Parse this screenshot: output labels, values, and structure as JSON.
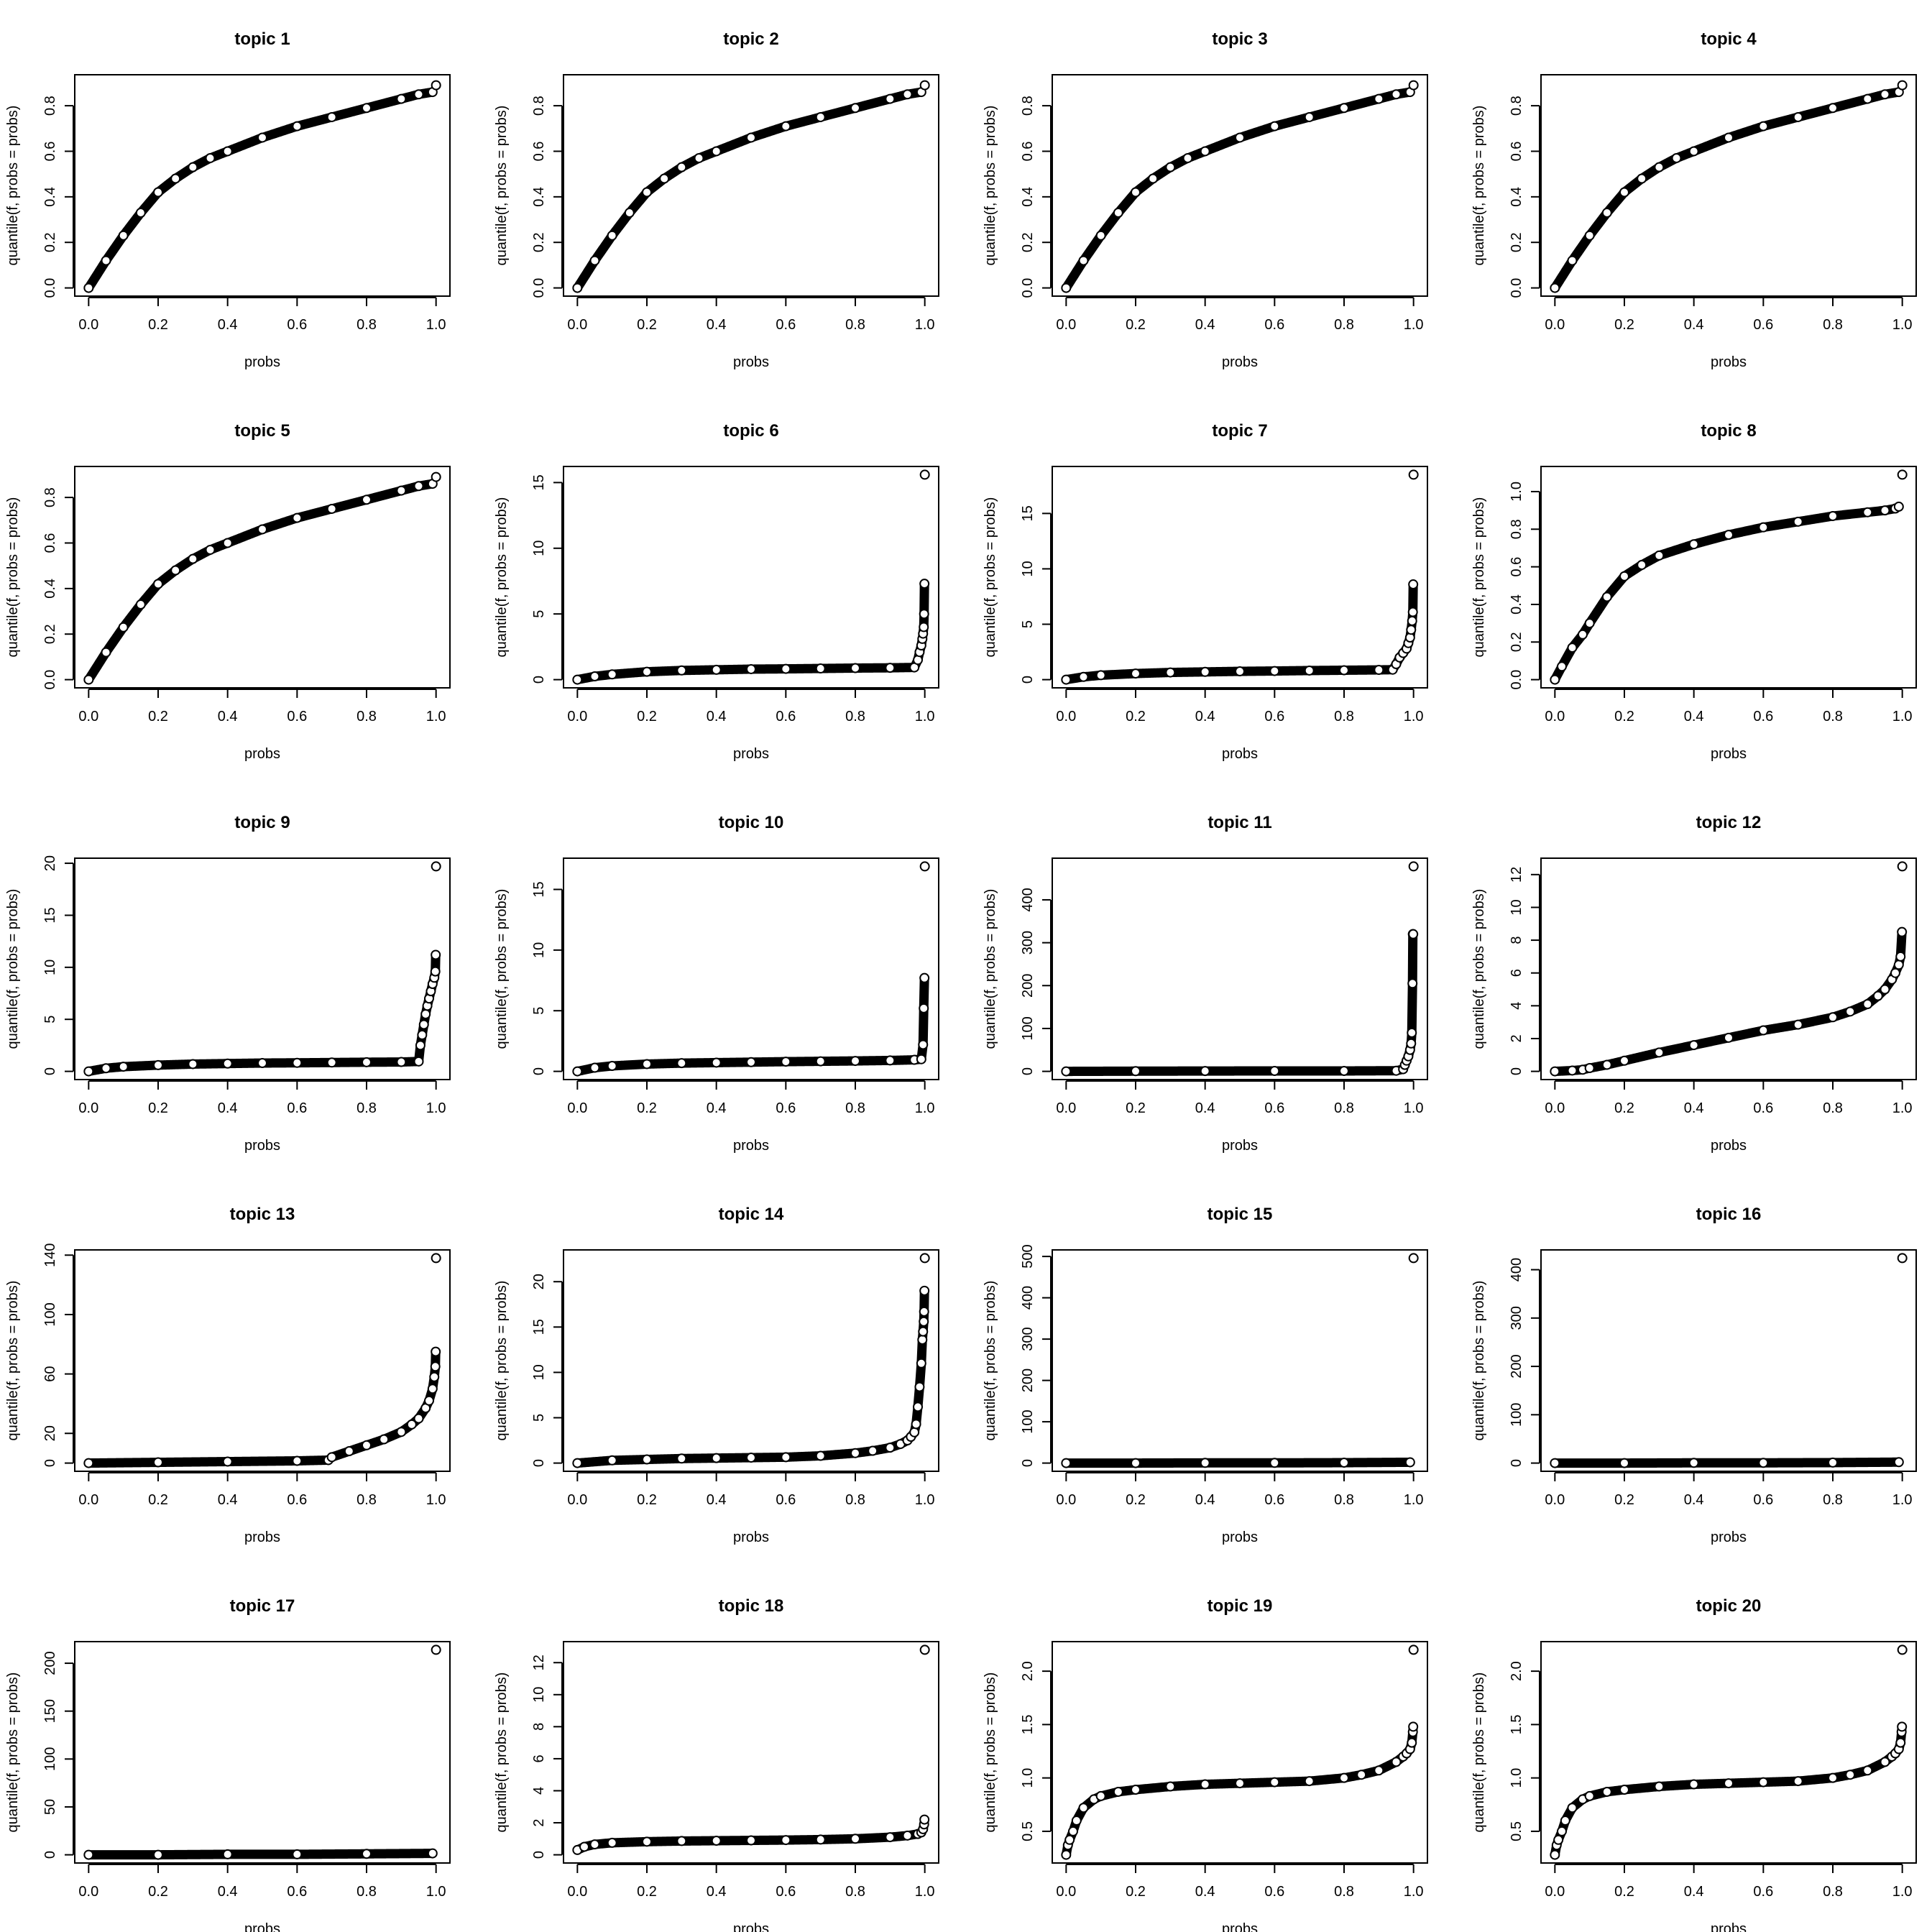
{
  "chart_data": [
    {
      "type": "scatter",
      "title": "topic 1",
      "xlabel": "probs",
      "ylabel": "quantile(f, probs = probs)",
      "xlim": [
        0,
        1
      ],
      "ylim": [
        0,
        0.9
      ],
      "xticks": [
        "0.0",
        "0.2",
        "0.4",
        "0.6",
        "0.8",
        "1.0"
      ],
      "yticks": [
        "0.0",
        "0.2",
        "0.4",
        "0.6",
        "0.8"
      ],
      "x": [
        0,
        0.05,
        0.1,
        0.15,
        0.2,
        0.25,
        0.3,
        0.35,
        0.4,
        0.5,
        0.6,
        0.7,
        0.8,
        0.9,
        0.95,
        0.99,
        1.0
      ],
      "y": [
        0,
        0.12,
        0.23,
        0.33,
        0.42,
        0.48,
        0.53,
        0.57,
        0.6,
        0.66,
        0.71,
        0.75,
        0.79,
        0.83,
        0.85,
        0.86,
        0.89
      ]
    },
    {
      "type": "scatter",
      "title": "topic 2",
      "xlabel": "probs",
      "ylabel": "quantile(f, probs = probs)",
      "xlim": [
        0,
        1
      ],
      "ylim": [
        0,
        0.9
      ],
      "xticks": [
        "0.0",
        "0.2",
        "0.4",
        "0.6",
        "0.8",
        "1.0"
      ],
      "yticks": [
        "0.0",
        "0.2",
        "0.4",
        "0.6",
        "0.8"
      ],
      "x": [
        0,
        0.05,
        0.1,
        0.15,
        0.2,
        0.25,
        0.3,
        0.35,
        0.4,
        0.5,
        0.6,
        0.7,
        0.8,
        0.9,
        0.95,
        0.99,
        1.0
      ],
      "y": [
        0,
        0.12,
        0.23,
        0.33,
        0.42,
        0.48,
        0.53,
        0.57,
        0.6,
        0.66,
        0.71,
        0.75,
        0.79,
        0.83,
        0.85,
        0.86,
        0.89
      ]
    },
    {
      "type": "scatter",
      "title": "topic 3",
      "xlabel": "probs",
      "ylabel": "quantile(f, probs = probs)",
      "xlim": [
        0,
        1
      ],
      "ylim": [
        0,
        0.9
      ],
      "xticks": [
        "0.0",
        "0.2",
        "0.4",
        "0.6",
        "0.8",
        "1.0"
      ],
      "yticks": [
        "0.0",
        "0.2",
        "0.4",
        "0.6",
        "0.8"
      ],
      "x": [
        0,
        0.05,
        0.1,
        0.15,
        0.2,
        0.25,
        0.3,
        0.35,
        0.4,
        0.5,
        0.6,
        0.7,
        0.8,
        0.9,
        0.95,
        0.99,
        1.0
      ],
      "y": [
        0,
        0.12,
        0.23,
        0.33,
        0.42,
        0.48,
        0.53,
        0.57,
        0.6,
        0.66,
        0.71,
        0.75,
        0.79,
        0.83,
        0.85,
        0.86,
        0.89
      ]
    },
    {
      "type": "scatter",
      "title": "topic 4",
      "xlabel": "probs",
      "ylabel": "quantile(f, probs = probs)",
      "xlim": [
        0,
        1
      ],
      "ylim": [
        0,
        0.9
      ],
      "xticks": [
        "0.0",
        "0.2",
        "0.4",
        "0.6",
        "0.8",
        "1.0"
      ],
      "yticks": [
        "0.0",
        "0.2",
        "0.4",
        "0.6",
        "0.8"
      ],
      "x": [
        0,
        0.05,
        0.1,
        0.15,
        0.2,
        0.25,
        0.3,
        0.35,
        0.4,
        0.5,
        0.6,
        0.7,
        0.8,
        0.9,
        0.95,
        0.99,
        1.0
      ],
      "y": [
        0,
        0.12,
        0.23,
        0.33,
        0.42,
        0.48,
        0.53,
        0.57,
        0.6,
        0.66,
        0.71,
        0.75,
        0.79,
        0.83,
        0.85,
        0.86,
        0.89
      ]
    },
    {
      "type": "scatter",
      "title": "topic 5",
      "xlabel": "probs",
      "ylabel": "quantile(f, probs = probs)",
      "xlim": [
        0,
        1
      ],
      "ylim": [
        0,
        0.9
      ],
      "xticks": [
        "0.0",
        "0.2",
        "0.4",
        "0.6",
        "0.8",
        "1.0"
      ],
      "yticks": [
        "0.0",
        "0.2",
        "0.4",
        "0.6",
        "0.8"
      ],
      "x": [
        0,
        0.05,
        0.1,
        0.15,
        0.2,
        0.25,
        0.3,
        0.35,
        0.4,
        0.5,
        0.6,
        0.7,
        0.8,
        0.9,
        0.95,
        0.99,
        1.0
      ],
      "y": [
        0,
        0.12,
        0.23,
        0.33,
        0.42,
        0.48,
        0.53,
        0.57,
        0.6,
        0.66,
        0.71,
        0.75,
        0.79,
        0.83,
        0.85,
        0.86,
        0.89
      ]
    },
    {
      "type": "scatter",
      "title": "topic 6",
      "xlabel": "probs",
      "ylabel": "quantile(f, probs = probs)",
      "xlim": [
        0,
        1
      ],
      "ylim": [
        0,
        15.6
      ],
      "xticks": [
        "0.0",
        "0.2",
        "0.4",
        "0.6",
        "0.8",
        "1.0"
      ],
      "yticks": [
        "0",
        "5",
        "10",
        "15"
      ],
      "x": [
        0,
        0.05,
        0.1,
        0.2,
        0.3,
        0.4,
        0.5,
        0.6,
        0.7,
        0.8,
        0.9,
        0.97,
        0.98,
        0.985,
        0.99,
        0.993,
        0.995,
        0.997,
        0.998,
        0.999,
        1.0
      ],
      "y": [
        0,
        0.25,
        0.4,
        0.6,
        0.7,
        0.75,
        0.8,
        0.82,
        0.85,
        0.88,
        0.9,
        0.93,
        1.5,
        2.1,
        2.6,
        3.1,
        3.5,
        4.0,
        5.0,
        7.3,
        15.6
      ]
    },
    {
      "type": "scatter",
      "title": "topic 7",
      "xlabel": "probs",
      "ylabel": "quantile(f, probs = probs)",
      "xlim": [
        0,
        1
      ],
      "ylim": [
        0,
        18.5
      ],
      "xticks": [
        "0.0",
        "0.2",
        "0.4",
        "0.6",
        "0.8",
        "1.0"
      ],
      "yticks": [
        "0",
        "5",
        "10",
        "15"
      ],
      "x": [
        0,
        0.05,
        0.1,
        0.2,
        0.3,
        0.4,
        0.5,
        0.6,
        0.7,
        0.8,
        0.9,
        0.94,
        0.95,
        0.96,
        0.97,
        0.98,
        0.985,
        0.99,
        0.993,
        0.996,
        0.998,
        0.999,
        1.0
      ],
      "y": [
        0,
        0.25,
        0.4,
        0.55,
        0.65,
        0.7,
        0.75,
        0.78,
        0.82,
        0.85,
        0.88,
        0.9,
        1.4,
        2.0,
        2.4,
        2.8,
        3.3,
        3.8,
        4.5,
        5.3,
        6.1,
        8.6,
        18.5
      ]
    },
    {
      "type": "scatter",
      "title": "topic 8",
      "xlabel": "probs",
      "ylabel": "quantile(f, probs = probs)",
      "xlim": [
        0,
        1
      ],
      "ylim": [
        0,
        1.09
      ],
      "xticks": [
        "0.0",
        "0.2",
        "0.4",
        "0.6",
        "0.8",
        "1.0"
      ],
      "yticks": [
        "0.0",
        "0.2",
        "0.4",
        "0.6",
        "0.8",
        "1.0"
      ],
      "x": [
        0,
        0.02,
        0.05,
        0.08,
        0.1,
        0.15,
        0.2,
        0.25,
        0.3,
        0.4,
        0.5,
        0.6,
        0.7,
        0.8,
        0.9,
        0.95,
        0.98,
        0.99,
        1.0
      ],
      "y": [
        0,
        0.07,
        0.17,
        0.24,
        0.3,
        0.44,
        0.55,
        0.61,
        0.66,
        0.72,
        0.77,
        0.81,
        0.84,
        0.87,
        0.89,
        0.9,
        0.91,
        0.92,
        1.09
      ]
    },
    {
      "type": "scatter",
      "title": "topic 9",
      "xlabel": "probs",
      "ylabel": "quantile(f, probs = probs)",
      "xlim": [
        0,
        1
      ],
      "ylim": [
        0,
        19.7
      ],
      "xticks": [
        "0.0",
        "0.2",
        "0.4",
        "0.6",
        "0.8",
        "1.0"
      ],
      "yticks": [
        "0",
        "5",
        "10",
        "15",
        "20"
      ],
      "x": [
        0,
        0.05,
        0.1,
        0.2,
        0.3,
        0.4,
        0.5,
        0.6,
        0.7,
        0.8,
        0.9,
        0.95,
        0.955,
        0.96,
        0.965,
        0.97,
        0.975,
        0.98,
        0.985,
        0.99,
        0.995,
        0.998,
        0.999,
        1.0
      ],
      "y": [
        0,
        0.3,
        0.45,
        0.6,
        0.7,
        0.75,
        0.8,
        0.82,
        0.85,
        0.88,
        0.9,
        0.95,
        2.5,
        3.5,
        4.5,
        5.5,
        6.3,
        7.0,
        7.7,
        8.4,
        9.0,
        9.6,
        11.2,
        19.7
      ]
    },
    {
      "type": "scatter",
      "title": "topic 10",
      "xlabel": "probs",
      "ylabel": "quantile(f, probs = probs)",
      "xlim": [
        0,
        1
      ],
      "ylim": [
        0,
        16.9
      ],
      "xticks": [
        "0.0",
        "0.2",
        "0.4",
        "0.6",
        "0.8",
        "1.0"
      ],
      "yticks": [
        "0",
        "5",
        "10",
        "15"
      ],
      "x": [
        0,
        0.05,
        0.1,
        0.2,
        0.3,
        0.4,
        0.5,
        0.6,
        0.7,
        0.8,
        0.9,
        0.97,
        0.99,
        0.995,
        0.997,
        0.999,
        1.0
      ],
      "y": [
        0,
        0.3,
        0.45,
        0.6,
        0.68,
        0.72,
        0.76,
        0.8,
        0.83,
        0.86,
        0.9,
        0.95,
        1.0,
        2.2,
        5.2,
        7.7,
        16.9
      ]
    },
    {
      "type": "scatter",
      "title": "topic 11",
      "xlabel": "probs",
      "ylabel": "quantile(f, probs = probs)",
      "xlim": [
        0,
        1
      ],
      "ylim": [
        0,
        478
      ],
      "xticks": [
        "0.0",
        "0.2",
        "0.4",
        "0.6",
        "0.8",
        "1.0"
      ],
      "yticks": [
        "0",
        "100",
        "200",
        "300",
        "400"
      ],
      "x": [
        0,
        0.2,
        0.4,
        0.6,
        0.8,
        0.95,
        0.97,
        0.975,
        0.98,
        0.985,
        0.99,
        0.993,
        0.995,
        0.997,
        0.998,
        0.999,
        1.0
      ],
      "y": [
        0,
        0.5,
        0.8,
        1,
        1,
        1.5,
        5,
        15,
        25,
        35,
        50,
        65,
        90,
        205,
        320,
        320,
        478
      ]
    },
    {
      "type": "scatter",
      "title": "topic 12",
      "xlabel": "probs",
      "ylabel": "quantile(f, probs = probs)",
      "xlim": [
        0,
        1
      ],
      "ylim": [
        0,
        12.5
      ],
      "xticks": [
        "0.0",
        "0.2",
        "0.4",
        "0.6",
        "0.8",
        "1.0"
      ],
      "yticks": [
        "0",
        "2",
        "4",
        "6",
        "8",
        "10",
        "12"
      ],
      "x": [
        0,
        0.05,
        0.08,
        0.1,
        0.15,
        0.2,
        0.3,
        0.4,
        0.5,
        0.6,
        0.7,
        0.8,
        0.85,
        0.9,
        0.93,
        0.95,
        0.97,
        0.98,
        0.99,
        0.995,
        0.999,
        1.0
      ],
      "y": [
        0,
        0.05,
        0.1,
        0.2,
        0.4,
        0.65,
        1.15,
        1.6,
        2.05,
        2.5,
        2.85,
        3.3,
        3.65,
        4.1,
        4.6,
        5.0,
        5.6,
        6.0,
        6.5,
        7.0,
        8.5,
        12.5
      ]
    },
    {
      "type": "scatter",
      "title": "topic 13",
      "xlabel": "probs",
      "ylabel": "quantile(f, probs = probs)",
      "xlim": [
        0,
        1
      ],
      "ylim": [
        0,
        138
      ],
      "xticks": [
        "0.0",
        "0.2",
        "0.4",
        "0.6",
        "0.8",
        "1.0"
      ],
      "yticks": [
        "0",
        "20",
        "60",
        "100",
        "140"
      ],
      "x": [
        0,
        0.2,
        0.4,
        0.6,
        0.69,
        0.7,
        0.75,
        0.8,
        0.85,
        0.9,
        0.93,
        0.95,
        0.97,
        0.98,
        0.99,
        0.995,
        0.998,
        0.999,
        1.0
      ],
      "y": [
        0,
        0.5,
        1,
        1.5,
        2,
        4,
        8,
        12,
        16,
        21,
        26,
        30,
        37,
        42,
        50,
        58,
        65,
        75,
        138
      ]
    },
    {
      "type": "scatter",
      "title": "topic 14",
      "xlabel": "probs",
      "ylabel": "quantile(f, probs = probs)",
      "xlim": [
        0,
        1
      ],
      "ylim": [
        0,
        22.6
      ],
      "xticks": [
        "0.0",
        "0.2",
        "0.4",
        "0.6",
        "0.8",
        "1.0"
      ],
      "yticks": [
        "0",
        "5",
        "10",
        "15",
        "20"
      ],
      "x": [
        0,
        0.1,
        0.2,
        0.3,
        0.4,
        0.5,
        0.6,
        0.7,
        0.8,
        0.85,
        0.9,
        0.93,
        0.95,
        0.96,
        0.97,
        0.975,
        0.98,
        0.985,
        0.99,
        0.993,
        0.995,
        0.997,
        0.998,
        0.999,
        1.0
      ],
      "y": [
        0,
        0.3,
        0.4,
        0.5,
        0.55,
        0.6,
        0.65,
        0.8,
        1.1,
        1.35,
        1.7,
        2.1,
        2.5,
        2.9,
        3.4,
        4.3,
        6.2,
        8.4,
        11,
        13.6,
        14.5,
        15.6,
        16.7,
        19,
        22.6
      ]
    },
    {
      "type": "scatter",
      "title": "topic 15",
      "xlabel": "probs",
      "ylabel": "quantile(f, probs = probs)",
      "xlim": [
        0,
        1
      ],
      "ylim": [
        0,
        496
      ],
      "xticks": [
        "0.0",
        "0.2",
        "0.4",
        "0.6",
        "0.8",
        "1.0"
      ],
      "yticks": [
        "0",
        "100",
        "200",
        "300",
        "400",
        "500"
      ],
      "x": [
        0,
        0.2,
        0.4,
        0.6,
        0.8,
        0.99,
        1.0
      ],
      "y": [
        0,
        0,
        0.5,
        0.5,
        1,
        2,
        496
      ]
    },
    {
      "type": "scatter",
      "title": "topic 16",
      "xlabel": "probs",
      "ylabel": "quantile(f, probs = probs)",
      "xlim": [
        0,
        1
      ],
      "ylim": [
        0,
        424
      ],
      "xticks": [
        "0.0",
        "0.2",
        "0.4",
        "0.6",
        "0.8",
        "1.0"
      ],
      "yticks": [
        "0",
        "100",
        "200",
        "300",
        "400"
      ],
      "x": [
        0,
        0.2,
        0.4,
        0.6,
        0.8,
        0.99,
        1.0
      ],
      "y": [
        0,
        0,
        0.5,
        0.5,
        1,
        2,
        424
      ]
    },
    {
      "type": "scatter",
      "title": "topic 17",
      "xlabel": "probs",
      "ylabel": "quantile(f, probs = probs)",
      "xlim": [
        0,
        1
      ],
      "ylim": [
        0,
        214
      ],
      "xticks": [
        "0.0",
        "0.2",
        "0.4",
        "0.6",
        "0.8",
        "1.0"
      ],
      "yticks": [
        "0",
        "50",
        "100",
        "150",
        "200"
      ],
      "x": [
        0,
        0.2,
        0.4,
        0.6,
        0.8,
        0.99,
        1.0
      ],
      "y": [
        0,
        0,
        0.5,
        0.5,
        1,
        1.5,
        214
      ]
    },
    {
      "type": "scatter",
      "title": "topic 18",
      "xlabel": "probs",
      "ylabel": "quantile(f, probs = probs)",
      "xlim": [
        0,
        1
      ],
      "ylim": [
        0,
        12.8
      ],
      "xticks": [
        "0.0",
        "0.2",
        "0.4",
        "0.6",
        "0.8",
        "1.0"
      ],
      "yticks": [
        "0",
        "2",
        "4",
        "6",
        "8",
        "10",
        "12"
      ],
      "x": [
        0,
        0.02,
        0.05,
        0.1,
        0.2,
        0.3,
        0.4,
        0.5,
        0.6,
        0.7,
        0.8,
        0.9,
        0.95,
        0.98,
        0.99,
        0.995,
        0.998,
        0.999,
        1.0
      ],
      "y": [
        0.3,
        0.5,
        0.65,
        0.75,
        0.82,
        0.86,
        0.88,
        0.9,
        0.92,
        0.95,
        1.0,
        1.1,
        1.2,
        1.3,
        1.4,
        1.6,
        1.9,
        2.2,
        12.8
      ]
    },
    {
      "type": "scatter",
      "title": "topic 19",
      "xlabel": "probs",
      "ylabel": "quantile(f, probs = probs)",
      "xlim": [
        0,
        1
      ],
      "ylim": [
        0.28,
        2.2
      ],
      "xticks": [
        "0.0",
        "0.2",
        "0.4",
        "0.6",
        "0.8",
        "1.0"
      ],
      "yticks": [
        "0.5",
        "1.0",
        "1.5",
        "2.0"
      ],
      "x": [
        0,
        0.005,
        0.01,
        0.02,
        0.03,
        0.05,
        0.08,
        0.1,
        0.15,
        0.2,
        0.3,
        0.4,
        0.5,
        0.6,
        0.7,
        0.8,
        0.85,
        0.9,
        0.95,
        0.97,
        0.98,
        0.99,
        0.995,
        0.998,
        0.999,
        1.0
      ],
      "y": [
        0.28,
        0.37,
        0.42,
        0.5,
        0.6,
        0.72,
        0.8,
        0.83,
        0.87,
        0.89,
        0.92,
        0.94,
        0.95,
        0.96,
        0.97,
        1.0,
        1.03,
        1.07,
        1.15,
        1.2,
        1.23,
        1.27,
        1.33,
        1.43,
        1.48,
        2.2
      ]
    },
    {
      "type": "scatter",
      "title": "topic 20",
      "xlabel": "probs",
      "ylabel": "quantile(f, probs = probs)",
      "xlim": [
        0,
        1
      ],
      "ylim": [
        0.28,
        2.2
      ],
      "xticks": [
        "0.0",
        "0.2",
        "0.4",
        "0.6",
        "0.8",
        "1.0"
      ],
      "yticks": [
        "0.5",
        "1.0",
        "1.5",
        "2.0"
      ],
      "x": [
        0,
        0.005,
        0.01,
        0.02,
        0.03,
        0.05,
        0.08,
        0.1,
        0.15,
        0.2,
        0.3,
        0.4,
        0.5,
        0.6,
        0.7,
        0.8,
        0.85,
        0.9,
        0.95,
        0.97,
        0.98,
        0.99,
        0.995,
        0.998,
        0.999,
        1.0
      ],
      "y": [
        0.28,
        0.37,
        0.42,
        0.5,
        0.6,
        0.72,
        0.8,
        0.83,
        0.87,
        0.89,
        0.92,
        0.94,
        0.95,
        0.96,
        0.97,
        1.0,
        1.03,
        1.07,
        1.15,
        1.2,
        1.23,
        1.27,
        1.33,
        1.43,
        1.48,
        2.2
      ]
    }
  ]
}
